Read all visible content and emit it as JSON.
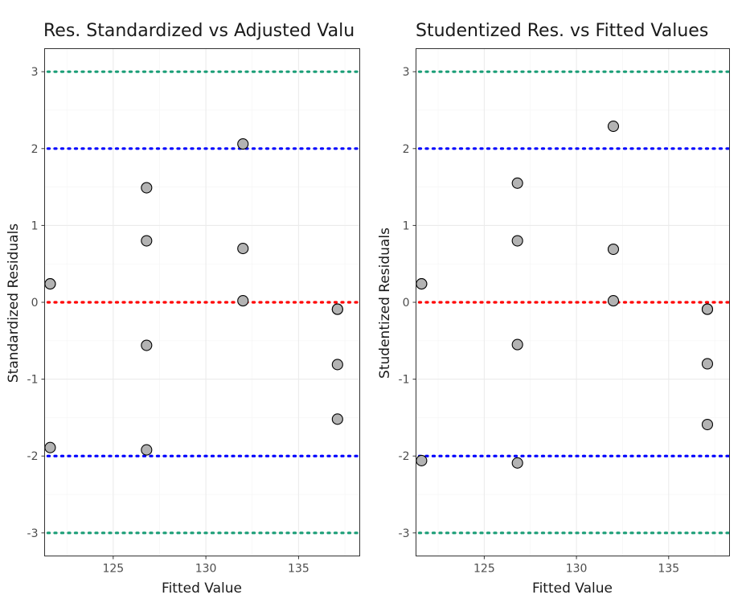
{
  "chart_data": [
    {
      "type": "scatter",
      "title": "Res. Standardized vs Adjusted Valu",
      "xlabel": "Fitted Value",
      "ylabel": "Standardized Residuals",
      "xlim": [
        121.3,
        138.3
      ],
      "ylim": [
        -3.3,
        3.3
      ],
      "x_ticks": [
        125,
        130,
        135
      ],
      "x_tick_labels": [
        "125",
        "130",
        "135"
      ],
      "y_ticks": [
        -3,
        -2,
        -1,
        0,
        1,
        2,
        3
      ],
      "y_tick_labels": [
        "-3",
        "-2",
        "-1",
        "0",
        "1",
        "2",
        "3"
      ],
      "grid": true,
      "reference_lines": [
        {
          "y": 3,
          "color": "#1b9e77"
        },
        {
          "y": 2,
          "color": "#0000ff"
        },
        {
          "y": 0,
          "color": "#ff0000"
        },
        {
          "y": -2,
          "color": "#0000ff"
        },
        {
          "y": -3,
          "color": "#1b9e77"
        }
      ],
      "points": [
        {
          "x": 121.6,
          "y": 0.24
        },
        {
          "x": 121.6,
          "y": 0.24
        },
        {
          "x": 121.6,
          "y": -1.89
        },
        {
          "x": 126.8,
          "y": 1.49
        },
        {
          "x": 126.8,
          "y": 0.8
        },
        {
          "x": 126.8,
          "y": -0.56
        },
        {
          "x": 126.8,
          "y": -1.92
        },
        {
          "x": 132.0,
          "y": 2.06
        },
        {
          "x": 132.0,
          "y": 0.7
        },
        {
          "x": 132.0,
          "y": 0.02
        },
        {
          "x": 137.1,
          "y": -0.09
        },
        {
          "x": 137.1,
          "y": -0.09
        },
        {
          "x": 137.1,
          "y": -0.81
        },
        {
          "x": 137.1,
          "y": -1.52
        }
      ]
    },
    {
      "type": "scatter",
      "title": "Studentized Res. vs Fitted Values",
      "xlabel": "Fitted Value",
      "ylabel": "Studentized Residuals",
      "xlim": [
        121.3,
        138.3
      ],
      "ylim": [
        -3.3,
        3.3
      ],
      "x_ticks": [
        125,
        130,
        135
      ],
      "x_tick_labels": [
        "125",
        "130",
        "135"
      ],
      "y_ticks": [
        -3,
        -2,
        -1,
        0,
        1,
        2,
        3
      ],
      "y_tick_labels": [
        "-3",
        "-2",
        "-1",
        "0",
        "1",
        "2",
        "3"
      ],
      "grid": true,
      "reference_lines": [
        {
          "y": 3,
          "color": "#1b9e77"
        },
        {
          "y": 2,
          "color": "#0000ff"
        },
        {
          "y": 0,
          "color": "#ff0000"
        },
        {
          "y": -2,
          "color": "#0000ff"
        },
        {
          "y": -3,
          "color": "#1b9e77"
        }
      ],
      "points": [
        {
          "x": 121.6,
          "y": 0.24
        },
        {
          "x": 121.6,
          "y": 0.24
        },
        {
          "x": 121.6,
          "y": -2.06
        },
        {
          "x": 126.8,
          "y": 1.55
        },
        {
          "x": 126.8,
          "y": 0.8
        },
        {
          "x": 126.8,
          "y": -0.55
        },
        {
          "x": 126.8,
          "y": -2.09
        },
        {
          "x": 132.0,
          "y": 2.29
        },
        {
          "x": 132.0,
          "y": 0.69
        },
        {
          "x": 132.0,
          "y": 0.02
        },
        {
          "x": 137.1,
          "y": -0.09
        },
        {
          "x": 137.1,
          "y": -0.09
        },
        {
          "x": 137.1,
          "y": -0.8
        },
        {
          "x": 137.1,
          "y": -1.59
        }
      ]
    }
  ]
}
